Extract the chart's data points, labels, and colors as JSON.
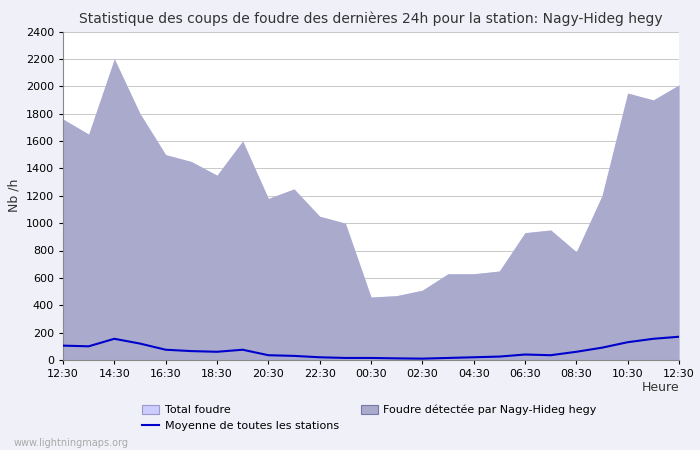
{
  "title": "Statistique des coups de foudre des dernières 24h pour la station: Nagy-Hideg hegy",
  "ylabel": "Nb /h",
  "xlabel": "Heure",
  "watermark": "www.lightningmaps.org",
  "legend_total": "Total foudre",
  "legend_moyenne": "Moyenne de toutes les stations",
  "legend_detected": "Foudre détectée par Nagy-Hideg hegy",
  "color_total_fill": "#ccccff",
  "color_detected_fill": "#aaaacc",
  "color_moyenne_line": "#0000cc",
  "ylim": [
    0,
    2400
  ],
  "yticks": [
    0,
    200,
    400,
    600,
    800,
    1000,
    1200,
    1400,
    1600,
    1800,
    2000,
    2200,
    2400
  ],
  "xtick_labels": [
    "12:30",
    "14:30",
    "16:30",
    "18:30",
    "20:30",
    "22:30",
    "00:30",
    "02:30",
    "04:30",
    "06:30",
    "08:30",
    "10:30",
    "12:30"
  ],
  "x_indices": [
    0,
    1,
    2,
    3,
    4,
    5,
    6,
    7,
    8,
    9,
    10,
    11,
    12,
    13,
    14,
    15,
    16,
    17,
    18,
    19,
    20,
    21,
    22,
    23,
    24
  ],
  "total_foudre": [
    1760,
    1650,
    2200,
    1800,
    1500,
    1450,
    1350,
    1600,
    1180,
    1250,
    1050,
    1000,
    460,
    470,
    510,
    630,
    630,
    650,
    930,
    950,
    790,
    1200,
    1950,
    1900,
    2010
  ],
  "detected_foudre": [
    1760,
    1650,
    2200,
    1800,
    1500,
    1450,
    1350,
    1600,
    1180,
    1250,
    1050,
    1000,
    460,
    470,
    510,
    630,
    630,
    650,
    930,
    950,
    790,
    1200,
    1950,
    1900,
    2010
  ],
  "moyenne": [
    105,
    100,
    155,
    120,
    75,
    65,
    60,
    75,
    35,
    30,
    20,
    15,
    15,
    12,
    10,
    15,
    20,
    25,
    40,
    35,
    60,
    90,
    130,
    155,
    170
  ],
  "bg_color": "#f0f0f8",
  "plot_bg_color": "#ffffff"
}
